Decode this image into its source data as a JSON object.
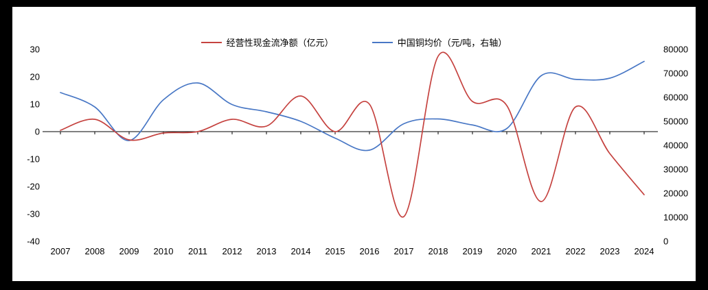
{
  "chart_data": {
    "type": "line",
    "title": "",
    "smooth": true,
    "grid": false,
    "legend_position": "top",
    "x": [
      2007,
      2008,
      2009,
      2010,
      2011,
      2012,
      2013,
      2014,
      2015,
      2016,
      2017,
      2018,
      2019,
      2020,
      2021,
      2022,
      2023,
      2024
    ],
    "series": [
      {
        "name": "经营性现金流净额（亿元）",
        "axis": "left",
        "color": "#c5423f",
        "values": [
          0.5,
          4.5,
          -3,
          -0.5,
          0,
          4.5,
          2,
          13,
          0,
          10,
          -31,
          27.5,
          11,
          9.5,
          -25.5,
          9,
          -8,
          -23
        ]
      },
      {
        "name": "中国铜均价（元/吨，右轴）",
        "axis": "right",
        "color": "#4877c5",
        "values": [
          62000,
          56000,
          42000,
          59000,
          66000,
          57000,
          54000,
          50000,
          43000,
          38000,
          49000,
          51000,
          48500,
          47000,
          69000,
          67500,
          68000,
          75000
        ]
      }
    ],
    "left_axis": {
      "min": -40,
      "max": 30,
      "ticks": [
        30,
        20,
        10,
        0,
        -10,
        -20,
        -30,
        -40
      ]
    },
    "right_axis": {
      "min": 0,
      "max": 80000,
      "ticks": [
        80000,
        70000,
        60000,
        50000,
        40000,
        30000,
        20000,
        10000,
        0
      ]
    }
  }
}
